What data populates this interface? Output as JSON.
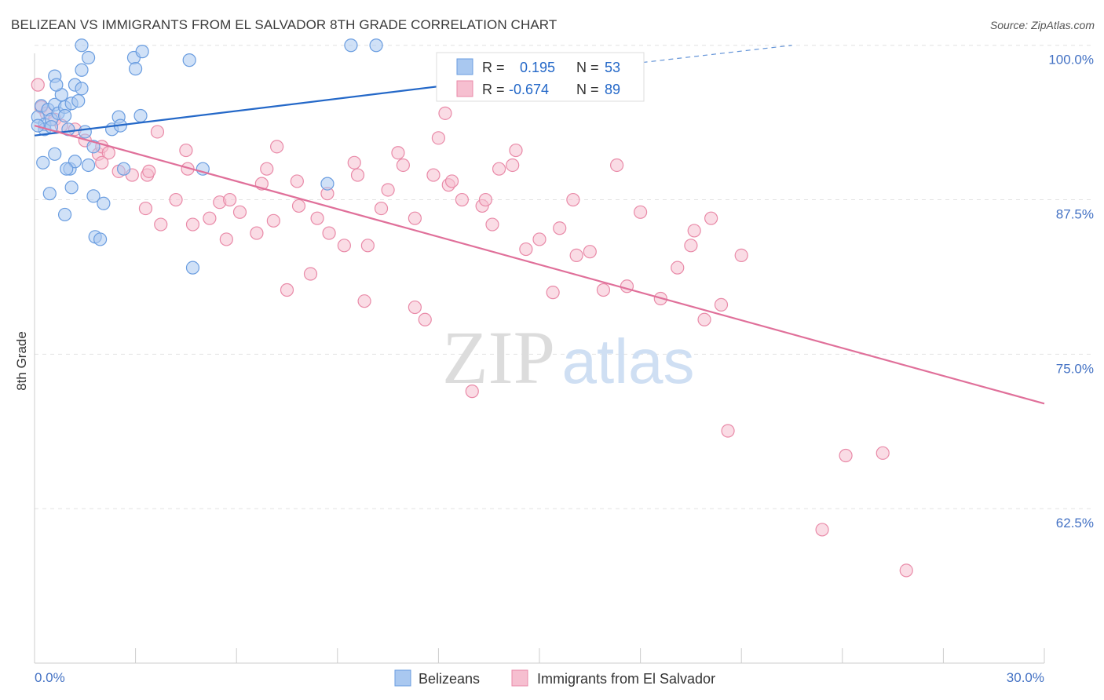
{
  "title": "BELIZEAN VS IMMIGRANTS FROM EL SALVADOR 8TH GRADE CORRELATION CHART",
  "source": "Source: ZipAtlas.com",
  "watermark": {
    "zip": "ZIP",
    "atlas": "atlas"
  },
  "colors": {
    "blue_fill": "#a9c8f0",
    "blue_stroke": "#6a9de0",
    "blue_line": "#2468c8",
    "pink_fill": "#f6bfd0",
    "pink_stroke": "#e98aa8",
    "pink_line": "#e0709a",
    "tick_text": "#4472c4",
    "grid": "#e2e2e2"
  },
  "stats": [
    {
      "r_label": "R =",
      "r_value": "0.195",
      "n_label": "N =",
      "n_value": "53",
      "series": "Belizeans"
    },
    {
      "r_label": "R =",
      "r_value": "-0.674",
      "n_label": "N =",
      "n_value": "89",
      "series": "Immigrants from El Salvador"
    }
  ],
  "chart_data": {
    "type": "scatter",
    "title": "BELIZEAN VS IMMIGRANTS FROM EL SALVADOR 8TH GRADE CORRELATION CHART",
    "xlabel": "",
    "ylabel": "8th Grade",
    "xlim": [
      0,
      30
    ],
    "ylim": [
      50,
      101
    ],
    "x_tick_labels": [
      {
        "value": 0,
        "label": "0.0%"
      },
      {
        "value": 30,
        "label": "30.0%"
      }
    ],
    "y_tick_labels": [
      {
        "value": 100,
        "label": "100.0%"
      },
      {
        "value": 87.5,
        "label": "87.5%"
      },
      {
        "value": 75,
        "label": "75.0%"
      },
      {
        "value": 62.5,
        "label": "62.5%"
      }
    ],
    "grid": true,
    "legend_position": "bottom-center",
    "series": [
      {
        "name": "Belizeans",
        "color": "#a9c8f0",
        "trend": {
          "x": [
            0,
            14.5
          ],
          "y": [
            92.7,
            97.5
          ],
          "dashed_to": [
            22.5,
            100.0
          ]
        },
        "points": [
          [
            0.1,
            94.2
          ],
          [
            0.2,
            95.1
          ],
          [
            0.3,
            93.6
          ],
          [
            0.4,
            94.8
          ],
          [
            0.3,
            93.2
          ],
          [
            0.5,
            94.0
          ],
          [
            0.6,
            95.2
          ],
          [
            0.5,
            93.4
          ],
          [
            0.7,
            94.5
          ],
          [
            0.8,
            96.0
          ],
          [
            0.9,
            95.0
          ],
          [
            0.6,
            97.5
          ],
          [
            0.65,
            96.8
          ],
          [
            0.9,
            94.3
          ],
          [
            1.0,
            93.2
          ],
          [
            1.1,
            95.3
          ],
          [
            1.3,
            95.5
          ],
          [
            1.2,
            96.8
          ],
          [
            1.4,
            96.5
          ],
          [
            1.6,
            99.0
          ],
          [
            1.4,
            98.0
          ],
          [
            1.4,
            100.0
          ],
          [
            0.6,
            91.2
          ],
          [
            0.25,
            90.5
          ],
          [
            1.05,
            90.0
          ],
          [
            1.2,
            90.6
          ],
          [
            0.95,
            90.0
          ],
          [
            1.6,
            90.3
          ],
          [
            1.75,
            91.8
          ],
          [
            2.5,
            94.2
          ],
          [
            2.3,
            93.2
          ],
          [
            2.55,
            93.5
          ],
          [
            3.15,
            94.3
          ],
          [
            2.65,
            90.0
          ],
          [
            2.95,
            99.0
          ],
          [
            3.0,
            98.1
          ],
          [
            3.2,
            99.5
          ],
          [
            4.6,
            98.8
          ],
          [
            0.45,
            88.0
          ],
          [
            1.1,
            88.5
          ],
          [
            1.75,
            87.8
          ],
          [
            2.05,
            87.2
          ],
          [
            0.9,
            86.3
          ],
          [
            1.8,
            84.5
          ],
          [
            1.95,
            84.3
          ],
          [
            5.0,
            90.0
          ],
          [
            4.7,
            82.0
          ],
          [
            8.7,
            88.8
          ],
          [
            9.4,
            100.0
          ],
          [
            10.15,
            100.0
          ],
          [
            12.15,
            98.9
          ],
          [
            0.1,
            93.5
          ],
          [
            1.5,
            93.0
          ]
        ]
      },
      {
        "name": "Immigrants from El Salvador",
        "color": "#f6bfd0",
        "trend": {
          "x": [
            0,
            30
          ],
          "y": [
            93.5,
            71.0
          ]
        },
        "points": [
          [
            0.1,
            96.8
          ],
          [
            0.2,
            95.0
          ],
          [
            0.35,
            94.5
          ],
          [
            0.6,
            94.0
          ],
          [
            0.8,
            93.5
          ],
          [
            1.2,
            93.2
          ],
          [
            1.5,
            92.3
          ],
          [
            1.9,
            91.2
          ],
          [
            2.0,
            91.8
          ],
          [
            2.2,
            91.3
          ],
          [
            2.0,
            90.5
          ],
          [
            2.5,
            89.8
          ],
          [
            2.9,
            89.5
          ],
          [
            3.35,
            89.5
          ],
          [
            3.4,
            89.8
          ],
          [
            3.65,
            93.0
          ],
          [
            3.3,
            86.8
          ],
          [
            3.75,
            85.5
          ],
          [
            4.2,
            87.5
          ],
          [
            4.5,
            91.5
          ],
          [
            4.55,
            90.0
          ],
          [
            4.7,
            85.5
          ],
          [
            5.2,
            86.0
          ],
          [
            5.5,
            87.3
          ],
          [
            5.7,
            84.3
          ],
          [
            5.8,
            87.5
          ],
          [
            6.1,
            86.5
          ],
          [
            6.6,
            84.8
          ],
          [
            6.75,
            88.8
          ],
          [
            6.9,
            90.0
          ],
          [
            7.2,
            91.8
          ],
          [
            7.1,
            85.8
          ],
          [
            7.5,
            80.2
          ],
          [
            7.8,
            89.0
          ],
          [
            7.85,
            87.0
          ],
          [
            8.2,
            81.5
          ],
          [
            8.4,
            86.0
          ],
          [
            8.75,
            84.8
          ],
          [
            8.7,
            88.0
          ],
          [
            9.2,
            83.8
          ],
          [
            9.5,
            90.5
          ],
          [
            9.6,
            89.5
          ],
          [
            9.8,
            79.3
          ],
          [
            9.9,
            83.8
          ],
          [
            10.3,
            86.8
          ],
          [
            10.5,
            88.3
          ],
          [
            10.8,
            91.3
          ],
          [
            10.95,
            90.3
          ],
          [
            11.3,
            86.0
          ],
          [
            11.3,
            78.8
          ],
          [
            11.6,
            77.8
          ],
          [
            11.85,
            89.5
          ],
          [
            12.0,
            92.5
          ],
          [
            12.2,
            94.5
          ],
          [
            12.3,
            88.7
          ],
          [
            12.4,
            89.0
          ],
          [
            12.7,
            87.5
          ],
          [
            13.0,
            72.0
          ],
          [
            13.3,
            87.0
          ],
          [
            13.4,
            87.5
          ],
          [
            13.6,
            85.5
          ],
          [
            13.8,
            90.0
          ],
          [
            14.2,
            90.3
          ],
          [
            14.3,
            91.5
          ],
          [
            14.6,
            83.5
          ],
          [
            15.0,
            84.3
          ],
          [
            15.4,
            80.0
          ],
          [
            15.6,
            85.2
          ],
          [
            16.0,
            87.5
          ],
          [
            16.1,
            83.0
          ],
          [
            16.6,
            98.5
          ],
          [
            16.5,
            83.3
          ],
          [
            16.9,
            80.2
          ],
          [
            17.3,
            90.3
          ],
          [
            17.6,
            80.5
          ],
          [
            18.0,
            86.5
          ],
          [
            18.6,
            79.5
          ],
          [
            19.1,
            82.0
          ],
          [
            19.5,
            83.8
          ],
          [
            19.6,
            85.0
          ],
          [
            19.9,
            77.8
          ],
          [
            20.1,
            86.0
          ],
          [
            20.4,
            79.0
          ],
          [
            21.0,
            83.0
          ],
          [
            20.6,
            68.8
          ],
          [
            23.4,
            60.8
          ],
          [
            24.1,
            66.8
          ],
          [
            25.2,
            67.0
          ],
          [
            25.9,
            57.5
          ]
        ]
      }
    ]
  },
  "legend": [
    {
      "label": "Belizeans",
      "color": "#a9c8f0"
    },
    {
      "label": "Immigrants from El Salvador",
      "color": "#f6bfd0"
    }
  ]
}
